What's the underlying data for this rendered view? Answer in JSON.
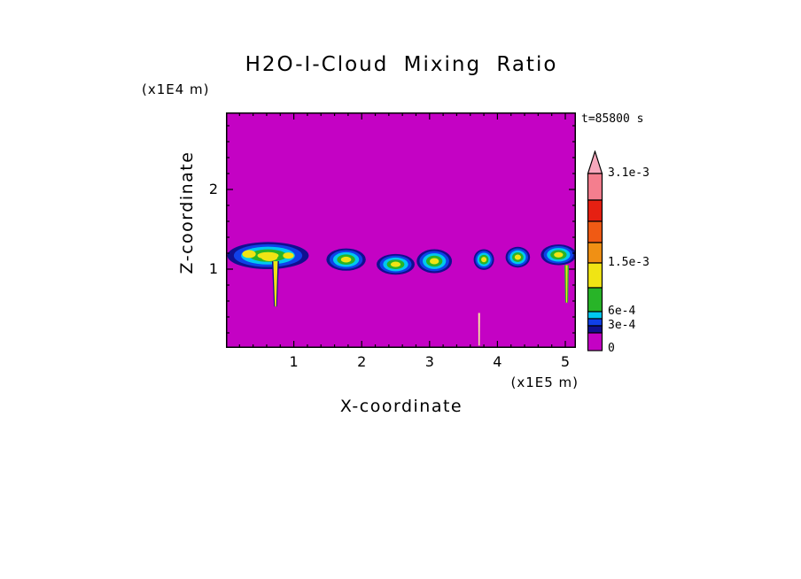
{
  "title": "H2O-I-Cloud Mixing Ratio",
  "timestamp": "t=85800 s",
  "axes": {
    "x_label": "X-coordinate",
    "x_unit": "(x1E5 m)",
    "x_ticks": [
      "1",
      "2",
      "3",
      "4",
      "5"
    ],
    "z_label": "Z-coordinate",
    "z_unit": "(x1E4 m)",
    "z_ticks": [
      "1",
      "2"
    ]
  },
  "colorbar": {
    "labels": [
      "3.1e-3",
      "1.5e-3",
      "6e-4",
      "3e-4",
      "0"
    ],
    "segment_colors": [
      "#f7a8bc",
      "#f47e8e",
      "#e62012",
      "#f05a14",
      "#f09014",
      "#f0e414",
      "#28b428",
      "#00c8f0",
      "#1040e8",
      "#101090",
      "#c402c4"
    ]
  },
  "chart_data": {
    "type": "heatmap",
    "title": "H2O-I-Cloud Mixing Ratio",
    "xlabel": "X-coordinate",
    "x_unit": "x1E5 m",
    "ylabel": "Z-coordinate",
    "y_unit": "x1E4 m",
    "time_seconds": 85800,
    "x_range": [
      0,
      5.16
    ],
    "z_range": [
      0,
      2.95
    ],
    "contour_levels": [
      0,
      0.0003,
      0.0006,
      0.0015,
      0.0031
    ],
    "background_value": 0,
    "background_color": "#c402c4",
    "layer_colors": [
      "#101090",
      "#1040e8",
      "#00c8f0",
      "#28b428",
      "#f0e414"
    ],
    "layer_scales": [
      1,
      0.84,
      0.66,
      0.46,
      0.26
    ],
    "clouds": [
      {
        "cx": 0.62,
        "cz": 1.17,
        "rx": 0.6,
        "rz": 0.17,
        "cores": [
          {
            "dx": -0.28,
            "dz": 0.02,
            "rx": 0.1,
            "rz": 0.05
          },
          {
            "dx": 0.02,
            "dz": -0.02,
            "rx": 0.12,
            "rz": 0.05
          },
          {
            "dx": 0.3,
            "dz": 0.0,
            "rx": 0.08,
            "rz": 0.04
          }
        ]
      },
      {
        "cx": 1.77,
        "cz": 1.12,
        "rx": 0.29,
        "rz": 0.14
      },
      {
        "cx": 2.5,
        "cz": 1.06,
        "rx": 0.28,
        "rz": 0.13
      },
      {
        "cx": 3.07,
        "cz": 1.1,
        "rx": 0.26,
        "rz": 0.15
      },
      {
        "cx": 3.8,
        "cz": 1.12,
        "rx": 0.15,
        "rz": 0.13
      },
      {
        "cx": 4.3,
        "cz": 1.15,
        "rx": 0.18,
        "rz": 0.13
      },
      {
        "cx": 4.9,
        "cz": 1.18,
        "rx": 0.26,
        "rz": 0.13
      }
    ],
    "fall_streaks": [
      {
        "x": 0.73,
        "z_top": 1.1,
        "z_bottom": 0.53,
        "w_top": 5,
        "w_bottom": 1.5,
        "color": "#f0e414",
        "edge": "#101090"
      },
      {
        "x": 5.02,
        "z_top": 1.05,
        "z_bottom": 0.58,
        "w_top": 2,
        "w_bottom": 1,
        "color": "#f0e414",
        "edge": "#28b428"
      },
      {
        "x": 3.73,
        "z_top": 0.45,
        "z_bottom": 0.04,
        "w_top": 2,
        "w_bottom": 1.5,
        "color": "#f7e8a0",
        "edge": null
      }
    ]
  }
}
